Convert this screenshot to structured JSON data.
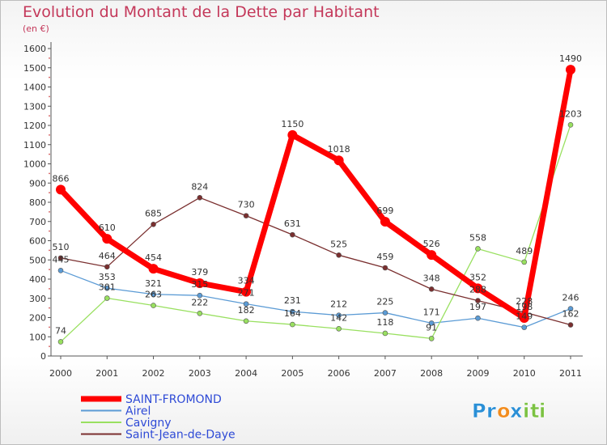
{
  "chart_data": {
    "type": "line",
    "title": "Evolution du Montant de la Dette par Habitant",
    "subtitle": "(en €)",
    "x": [
      "2000",
      "2001",
      "2002",
      "2003",
      "2004",
      "2005",
      "2006",
      "2007",
      "2008",
      "2009",
      "2010",
      "2011"
    ],
    "ylim": [
      0,
      1600
    ],
    "yticks": [
      0,
      100,
      200,
      300,
      400,
      500,
      600,
      700,
      800,
      900,
      1000,
      1100,
      1200,
      1300,
      1400,
      1500,
      1600
    ],
    "grid": false,
    "legend_position": "bottom-left",
    "series": [
      {
        "name": "SAINT-FROMOND",
        "color": "#ff0000",
        "highlight": true,
        "values": [
          866,
          610,
          454,
          379,
          334,
          1150,
          1018,
          699,
          526,
          352,
          198,
          1490
        ],
        "labels": [
          "866",
          "610",
          "454",
          "379",
          "334",
          "1150",
          "1018",
          "699",
          "526",
          "352",
          "198",
          "1490"
        ]
      },
      {
        "name": "Airel",
        "color": "#5b9bd5",
        "highlight": false,
        "values": [
          445,
          353,
          321,
          315,
          271,
          231,
          212,
          225,
          171,
          197,
          149,
          246
        ],
        "labels": [
          "445",
          "353",
          "321",
          "315",
          "271",
          "231",
          "212",
          "225",
          "171",
          "197",
          "149",
          "246"
        ]
      },
      {
        "name": "Cavigny",
        "color": "#99e060",
        "highlight": false,
        "values": [
          74,
          301,
          263,
          222,
          182,
          164,
          142,
          118,
          91,
          558,
          489,
          1203
        ],
        "labels": [
          "74",
          "301",
          "263",
          "222",
          "182",
          "164",
          "142",
          "118",
          "91",
          "558",
          "489",
          "1203"
        ]
      },
      {
        "name": "Saint-Jean-de-Daye",
        "color": "#7a2f2f",
        "highlight": false,
        "values": [
          510,
          464,
          685,
          824,
          730,
          631,
          525,
          459,
          348,
          288,
          228,
          162
        ],
        "labels": [
          "510",
          "464",
          "685",
          "824",
          "730",
          "631",
          "525",
          "459",
          "348",
          "288",
          "228",
          "162"
        ]
      }
    ]
  },
  "logo": {
    "letters": [
      "P",
      "r",
      "o",
      "x",
      "i",
      "t",
      "i"
    ],
    "colors": [
      "#2a8fd6",
      "#2a8fd6",
      "#f28c1e",
      "#2a8fd6",
      "#7cc243",
      "#7cc243",
      "#7cc243"
    ]
  }
}
